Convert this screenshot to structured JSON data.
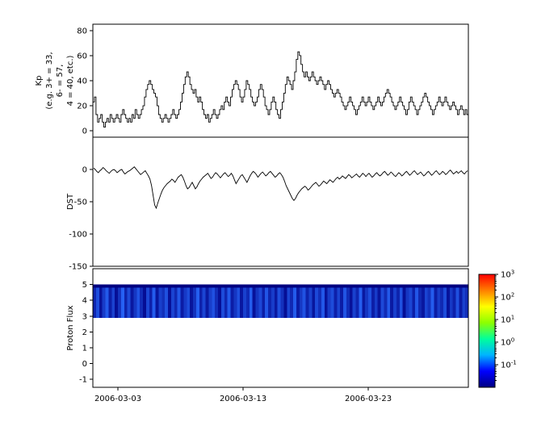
{
  "figure": {
    "background": "#ffffff",
    "line_color": "#000000",
    "font_size": 10
  },
  "xaxis": {
    "range_days": [
      0,
      30
    ],
    "tick_days": [
      2,
      12,
      22
    ],
    "tick_labels": [
      "2006-03-03",
      "2006-03-13",
      "2006-03-23"
    ]
  },
  "colorbar": {
    "gradient_bottom_to_top": [
      "#000083",
      "#0000ff",
      "#00b4ff",
      "#00ff9c",
      "#8cff00",
      "#ffff00",
      "#ff8000",
      "#ff0000"
    ],
    "tick_exponents": [
      "3",
      "2",
      "1",
      "0",
      "-1"
    ],
    "tick_base": "10",
    "log_range_exponents": [
      -2,
      3
    ]
  },
  "chart_data": [
    {
      "type": "line",
      "style": "step",
      "name": "kp-index",
      "ylabel_lines": [
        "Kp",
        "(e.g. 3+ = 33,",
        "6- = 57,",
        "4 = 40, etc.)"
      ],
      "ylim": [
        -5,
        85
      ],
      "yticks": [
        0,
        20,
        40,
        60,
        80
      ],
      "values": [
        23,
        27,
        13,
        7,
        10,
        13,
        7,
        3,
        7,
        10,
        7,
        13,
        10,
        7,
        10,
        13,
        10,
        7,
        13,
        17,
        13,
        10,
        7,
        10,
        7,
        13,
        10,
        17,
        13,
        10,
        13,
        17,
        20,
        27,
        33,
        37,
        40,
        37,
        33,
        30,
        27,
        20,
        13,
        10,
        7,
        10,
        13,
        10,
        7,
        10,
        13,
        17,
        13,
        10,
        13,
        17,
        23,
        30,
        37,
        43,
        47,
        43,
        37,
        33,
        30,
        33,
        27,
        23,
        27,
        23,
        17,
        13,
        10,
        13,
        7,
        10,
        13,
        17,
        13,
        10,
        13,
        17,
        20,
        17,
        23,
        27,
        23,
        20,
        27,
        33,
        37,
        40,
        37,
        33,
        27,
        23,
        27,
        33,
        40,
        37,
        33,
        27,
        23,
        20,
        23,
        27,
        33,
        37,
        33,
        27,
        20,
        17,
        13,
        17,
        23,
        27,
        23,
        17,
        13,
        10,
        17,
        23,
        30,
        37,
        43,
        40,
        37,
        33,
        40,
        47,
        57,
        63,
        60,
        53,
        47,
        43,
        47,
        43,
        40,
        43,
        47,
        43,
        40,
        37,
        40,
        43,
        40,
        37,
        33,
        37,
        40,
        37,
        33,
        30,
        27,
        30,
        33,
        30,
        27,
        23,
        20,
        17,
        20,
        23,
        27,
        23,
        20,
        17,
        13,
        17,
        20,
        23,
        27,
        23,
        20,
        23,
        27,
        23,
        20,
        17,
        20,
        23,
        27,
        23,
        20,
        23,
        27,
        30,
        33,
        30,
        27,
        23,
        20,
        17,
        20,
        23,
        27,
        23,
        20,
        17,
        13,
        17,
        23,
        27,
        23,
        20,
        17,
        13,
        17,
        20,
        23,
        27,
        30,
        27,
        23,
        20,
        17,
        13,
        17,
        20,
        23,
        27,
        23,
        20,
        23,
        27,
        23,
        20,
        17,
        20,
        23,
        20,
        17,
        13,
        17,
        20,
        17,
        13,
        17,
        13
      ]
    },
    {
      "type": "line",
      "style": "linear",
      "name": "dst-index",
      "ylabel": "DST",
      "ylim": [
        -150,
        50
      ],
      "yticks": [
        0,
        -50,
        -100,
        -150
      ],
      "values": [
        2,
        0,
        -3,
        -5,
        -2,
        0,
        3,
        1,
        -2,
        -4,
        -6,
        -3,
        -1,
        0,
        -2,
        -5,
        -3,
        -1,
        0,
        -4,
        -7,
        -5,
        -3,
        -2,
        0,
        2,
        4,
        1,
        -2,
        -5,
        -8,
        -6,
        -4,
        -2,
        -6,
        -10,
        -15,
        -25,
        -40,
        -55,
        -60,
        -52,
        -45,
        -38,
        -32,
        -28,
        -25,
        -22,
        -20,
        -18,
        -15,
        -17,
        -20,
        -16,
        -12,
        -10,
        -8,
        -12,
        -18,
        -25,
        -30,
        -28,
        -24,
        -20,
        -25,
        -30,
        -27,
        -22,
        -18,
        -15,
        -12,
        -10,
        -8,
        -6,
        -10,
        -14,
        -12,
        -8,
        -5,
        -7,
        -10,
        -13,
        -10,
        -7,
        -5,
        -8,
        -11,
        -9,
        -6,
        -10,
        -16,
        -22,
        -18,
        -14,
        -10,
        -8,
        -12,
        -16,
        -20,
        -15,
        -10,
        -6,
        -3,
        -5,
        -8,
        -12,
        -9,
        -6,
        -4,
        -7,
        -10,
        -8,
        -5,
        -3,
        -6,
        -9,
        -12,
        -10,
        -7,
        -5,
        -8,
        -12,
        -18,
        -25,
        -30,
        -35,
        -40,
        -45,
        -48,
        -45,
        -40,
        -36,
        -33,
        -30,
        -28,
        -26,
        -28,
        -32,
        -30,
        -27,
        -24,
        -22,
        -20,
        -23,
        -26,
        -24,
        -21,
        -18,
        -20,
        -22,
        -19,
        -16,
        -18,
        -20,
        -17,
        -14,
        -12,
        -15,
        -13,
        -10,
        -12,
        -14,
        -11,
        -8,
        -10,
        -13,
        -11,
        -9,
        -7,
        -10,
        -12,
        -9,
        -6,
        -8,
        -11,
        -8,
        -6,
        -9,
        -12,
        -10,
        -7,
        -5,
        -8,
        -10,
        -8,
        -5,
        -3,
        -6,
        -9,
        -7,
        -4,
        -6,
        -9,
        -11,
        -8,
        -5,
        -7,
        -10,
        -8,
        -5,
        -3,
        -6,
        -9,
        -7,
        -4,
        -2,
        -5,
        -8,
        -6,
        -4,
        -7,
        -10,
        -8,
        -5,
        -3,
        -6,
        -9,
        -7,
        -4,
        -2,
        -5,
        -8,
        -6,
        -3,
        -5,
        -8,
        -6,
        -3,
        -1,
        -4,
        -7,
        -5,
        -3,
        -6,
        -4,
        -2,
        -5,
        -7,
        -4,
        -2
      ]
    },
    {
      "type": "heatmap",
      "name": "proton-flux",
      "ylabel": "Proton Flux",
      "ylim": [
        -1.5,
        6
      ],
      "yticks": [
        -1,
        0,
        1,
        2,
        3,
        4,
        5
      ],
      "band": {
        "y_min": 2.9,
        "y_max": 5.0,
        "top_strip_y_min": 4.8,
        "top_strip_color": "#000080",
        "base_color": "#000085",
        "bright_color": "#2a6cff"
      },
      "flux_values": [
        0.35,
        0.72,
        0.18,
        0.55,
        0.83,
        0.29,
        0.61,
        0.14,
        0.47,
        0.9,
        0.33,
        0.68,
        0.22,
        0.51,
        0.77,
        0.4,
        0.12,
        0.65,
        0.3,
        0.85,
        0.2,
        0.58,
        0.44,
        0.74,
        0.16,
        0.62,
        0.38,
        0.8,
        0.26,
        0.53,
        0.7,
        0.19,
        0.46,
        0.88,
        0.31,
        0.64,
        0.24,
        0.57,
        0.75,
        0.42,
        0.15,
        0.69,
        0.36,
        0.82,
        0.27,
        0.5,
        0.73,
        0.21,
        0.6,
        0.39,
        0.86,
        0.17,
        0.48,
        0.66,
        0.28,
        0.79,
        0.34,
        0.56,
        0.23,
        0.71,
        0.45,
        0.13,
        0.63,
        0.37,
        0.84,
        0.25,
        0.52,
        0.76,
        0.32,
        0.59,
        0.2,
        0.67,
        0.43,
        0.81,
        0.18,
        0.54,
        0.7,
        0.3,
        0.62,
        0.26,
        0.78,
        0.41,
        0.16,
        0.6,
        0.35,
        0.87,
        0.22,
        0.49,
        0.72,
        0.28,
        0.55,
        0.19,
        0.68,
        0.4,
        0.83,
        0.24,
        0.58,
        0.33,
        0.75,
        0.14,
        0.51,
        0.65,
        0.29,
        0.8,
        0.37,
        0.21,
        0.63,
        0.46,
        0.85,
        0.27,
        0.56,
        0.38,
        0.7,
        0.17,
        0.53,
        0.31,
        0.74,
        0.25,
        0.6,
        0.42
      ]
    }
  ]
}
